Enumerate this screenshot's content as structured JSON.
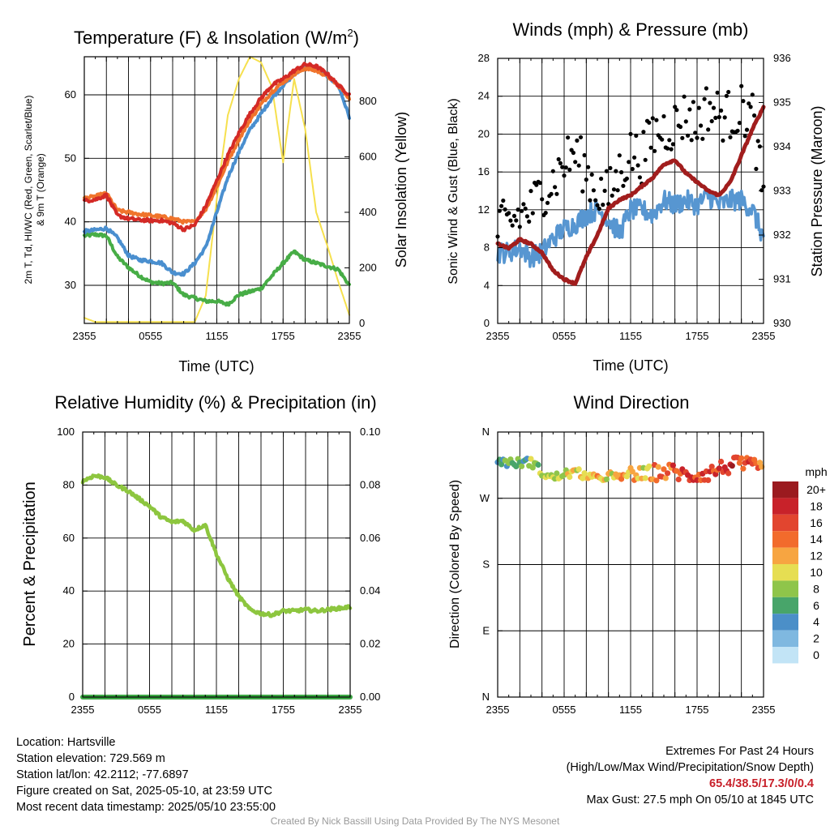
{
  "colors": {
    "temp": "#d42a26",
    "dewpoint": "#47ad46",
    "windchill": "#4a8fcf",
    "temp9m": "#f0742c",
    "solar": "#f6e04e",
    "wind": "#5796d1",
    "gust": "#000000",
    "pressure": "#a11d1d",
    "rh": "#8dc63f",
    "precip": "#3da845"
  },
  "time_ticks": [
    "2355",
    "0555",
    "1155",
    "1755",
    "2355"
  ],
  "panels": {
    "temp": {
      "title": "Temperature (F) & Insolation (W/m²)",
      "title_main": "Temperature (F) & Insolation (W/m",
      "title_sup": "2",
      "title_end": ")",
      "ylabel_line1": "2m T, Td, HI/WC (Red, Green, Scarlet/Blue)",
      "ylabel_line2": "& 9m T (Orange)",
      "y2label": "Solar Insolation (Yellow)",
      "xlabel": "Time (UTC)"
    },
    "wind": {
      "title": "Winds (mph) & Pressure (mb)",
      "ylabel": "Sonic Wind & Gust (Blue, Black)",
      "y2label": "Station Pressure (Maroon)",
      "xlabel": "Time (UTC)"
    },
    "rh": {
      "title": "Relative Humidity (%) & Precipitation (in)",
      "ylabel": "Percent & Precipitation"
    },
    "dir": {
      "title": "Wind Direction",
      "ylabel": "Direction (Colored By Speed)",
      "legend_title": "mph"
    }
  },
  "chart_data": [
    {
      "type": "line",
      "title": "Temperature (F) & Insolation (W/m²)",
      "xlabel": "Time (UTC)",
      "ylabel": "2m T, Td, HI/WC (Red, Green, Scarlet/Blue) & 9m T (Orange)",
      "y2label": "Solar Insolation (Yellow)",
      "x_ticks": [
        "2355",
        "0555",
        "1155",
        "1755",
        "2355"
      ],
      "ylim": [
        24,
        66
      ],
      "y_ticks": [
        30,
        40,
        50,
        60
      ],
      "y2lim": [
        0,
        960
      ],
      "y2_ticks": [
        0,
        200,
        400,
        600,
        800
      ],
      "x_hours": [
        0,
        1,
        2,
        3,
        4,
        5,
        6,
        7,
        8,
        9,
        10,
        11,
        12,
        13,
        14,
        15,
        16,
        17,
        18,
        19,
        20,
        21,
        22,
        23,
        24
      ],
      "series": [
        {
          "name": "2m T",
          "values": [
            43.3,
            43.5,
            44.2,
            41,
            40.5,
            40.3,
            40.2,
            40.2,
            39.8,
            38.8,
            39.5,
            42.5,
            46.5,
            50.5,
            54,
            57,
            59.5,
            61.5,
            62.5,
            63.8,
            64.8,
            64.5,
            63.3,
            61.5,
            60
          ]
        },
        {
          "name": "9m T",
          "values": [
            43.7,
            44,
            44.5,
            41.8,
            41.5,
            41.2,
            41,
            40.8,
            40.5,
            40,
            40,
            42,
            45.5,
            49.5,
            53,
            56,
            58.5,
            60.5,
            62,
            63.2,
            64.2,
            63.8,
            63,
            61.5,
            59.5
          ]
        },
        {
          "name": "HI/WC",
          "values": [
            38.5,
            38.7,
            39,
            37.5,
            34.7,
            34,
            33.8,
            33.5,
            32,
            31.8,
            33.5,
            36,
            41.5,
            47,
            51,
            54.5,
            57,
            59.5,
            61.5,
            63.2,
            64.5,
            64,
            63,
            61.5,
            56.5
          ]
        },
        {
          "name": "2m Td",
          "values": [
            37.8,
            38,
            37.8,
            34.5,
            32.8,
            31.5,
            30.5,
            30.3,
            30.4,
            28.5,
            28,
            27.5,
            27.5,
            27,
            28.5,
            29,
            29.5,
            31.5,
            33.5,
            35.3,
            34,
            33.5,
            33,
            32.5,
            30
          ]
        },
        {
          "name": "Solar Insolation",
          "axis": "y2",
          "values": [
            20,
            5,
            5,
            5,
            5,
            5,
            5,
            5,
            5,
            5,
            5,
            100,
            450,
            750,
            880,
            960,
            940,
            850,
            580,
            880,
            700,
            400,
            280,
            150,
            30
          ]
        }
      ]
    },
    {
      "type": "line",
      "title": "Winds (mph) & Pressure (mb)",
      "xlabel": "Time (UTC)",
      "ylabel": "Sonic Wind & Gust (Blue, Black)",
      "y2label": "Station Pressure (Maroon)",
      "x_ticks": [
        "2355",
        "0555",
        "1155",
        "1755",
        "2355"
      ],
      "ylim": [
        0,
        28
      ],
      "y_ticks": [
        0,
        4,
        8,
        12,
        16,
        20,
        24,
        28
      ],
      "y2lim": [
        930,
        936
      ],
      "y2_ticks": [
        930,
        931,
        932,
        933,
        934,
        935,
        936
      ],
      "x_hours": [
        0,
        1,
        2,
        3,
        4,
        5,
        6,
        7,
        8,
        9,
        10,
        11,
        12,
        13,
        14,
        15,
        16,
        17,
        18,
        19,
        20,
        21,
        22,
        23,
        24
      ],
      "series": [
        {
          "name": "Sonic Wind",
          "values": [
            7.5,
            7.5,
            8,
            7,
            7.5,
            9,
            10,
            10.5,
            11.5,
            12,
            11,
            9.5,
            12,
            12,
            11.5,
            13,
            12.5,
            13,
            12.5,
            13.5,
            12.5,
            13,
            13,
            12,
            9
          ]
        },
        {
          "name": "Gust",
          "values": [
            10,
            10.5,
            11.5,
            12,
            14,
            15,
            17,
            18,
            16,
            14,
            13.5,
            16,
            18,
            17.5,
            20,
            20.5,
            21,
            22,
            21,
            23,
            22,
            22,
            22.5,
            22,
            13
          ]
        },
        {
          "name": "Station Pressure",
          "axis": "y2",
          "values": [
            931.8,
            931.7,
            931.9,
            931.8,
            931.6,
            931.2,
            931,
            930.9,
            931.5,
            932,
            932.6,
            932.8,
            932.9,
            933.1,
            933.3,
            933.6,
            933.7,
            933.4,
            933.2,
            933,
            932.9,
            933.2,
            933.8,
            934.4,
            934.9
          ]
        }
      ]
    },
    {
      "type": "line",
      "title": "Relative Humidity (%) & Precipitation (in)",
      "ylabel": "Percent & Precipitation",
      "x_ticks": [
        "2355",
        "0555",
        "1155",
        "1755",
        "2355"
      ],
      "ylim": [
        0,
        100
      ],
      "y_ticks": [
        0,
        20,
        40,
        60,
        80,
        100
      ],
      "y2lim": [
        0,
        0.1
      ],
      "y2_ticks": [
        "0.00",
        "0.02",
        "0.04",
        "0.06",
        "0.08",
        "0.10"
      ],
      "x_hours": [
        0,
        1,
        2,
        3,
        4,
        5,
        6,
        7,
        8,
        9,
        10,
        11,
        12,
        13,
        14,
        15,
        16,
        17,
        18,
        19,
        20,
        21,
        22,
        23,
        24
      ],
      "series": [
        {
          "name": "Relative Humidity",
          "values": [
            81.5,
            83.5,
            83,
            80,
            78,
            75,
            72,
            68,
            66,
            66.5,
            63,
            65,
            54,
            45,
            38,
            33,
            31.5,
            31,
            32.5,
            32.5,
            33,
            32.5,
            33,
            33.5,
            34
          ]
        },
        {
          "name": "Precipitation",
          "axis": "y2",
          "values": [
            0,
            0,
            0,
            0,
            0,
            0,
            0,
            0,
            0,
            0,
            0,
            0,
            0,
            0,
            0,
            0,
            0,
            0,
            0,
            0,
            0,
            0,
            0,
            0,
            0
          ]
        }
      ]
    },
    {
      "type": "scatter",
      "title": "Wind Direction",
      "ylabel": "Direction (Colored By Speed)",
      "x_ticks": [
        "2355",
        "0555",
        "1155",
        "1755",
        "2355"
      ],
      "y_ticks": [
        "N",
        "W",
        "S",
        "E",
        "N"
      ],
      "ylim": [
        0,
        360
      ],
      "y_tick_values": [
        360,
        270,
        180,
        90,
        0
      ],
      "legend_title": "mph",
      "legend_labels": [
        "20+",
        "18",
        "16",
        "14",
        "12",
        "10",
        "8",
        "6",
        "4",
        "2",
        "0"
      ],
      "legend_colors": [
        "#9b1a1f",
        "#c8222a",
        "#e2452f",
        "#f26b2c",
        "#f7a541",
        "#e6de52",
        "#8fc54a",
        "#48a56a",
        "#4b8fc8",
        "#7fb8e0",
        "#c2e4f6"
      ],
      "x_hours": [
        0,
        1,
        2,
        3,
        4,
        5,
        6,
        7,
        8,
        9,
        10,
        11,
        12,
        13,
        14,
        15,
        16,
        17,
        18,
        19,
        20,
        21,
        22,
        23,
        24
      ],
      "series": [
        {
          "name": "Direction",
          "values": [
            322,
            318,
            318,
            320,
            305,
            297,
            303,
            305,
            301,
            295,
            302,
            296,
            306,
            300,
            305,
            305,
            307,
            300,
            302,
            304,
            310,
            314,
            316,
            312,
            310
          ]
        },
        {
          "name": "Speed",
          "values": [
            6,
            6,
            7,
            8,
            9,
            10,
            11,
            12,
            13,
            12,
            11,
            12,
            13,
            12,
            14,
            15,
            16,
            17,
            16,
            16,
            17,
            18,
            17,
            16,
            13
          ]
        }
      ]
    }
  ],
  "footer": {
    "location": "Location: Hartsville",
    "elevation": "Station elevation: 729.569 m",
    "latlon": "Station lat/lon: 42.2112; -77.6897",
    "created": "Figure created on Sat, 2025-05-10, at 23:59 UTC",
    "latest": "Most recent data timestamp: 2025/05/10 23:55:00",
    "extremes_title": "Extremes For Past 24 Hours",
    "extremes_sub": "(High/Low/Max Wind/Precipitation/Snow Depth)",
    "extremes_values": "65.4/38.5/17.3/0/0.4",
    "max_gust": "Max Gust: 27.5 mph On 05/10 at 1845 UTC",
    "credit": "Created By Nick Bassill Using Data Provided By The NYS Mesonet"
  }
}
